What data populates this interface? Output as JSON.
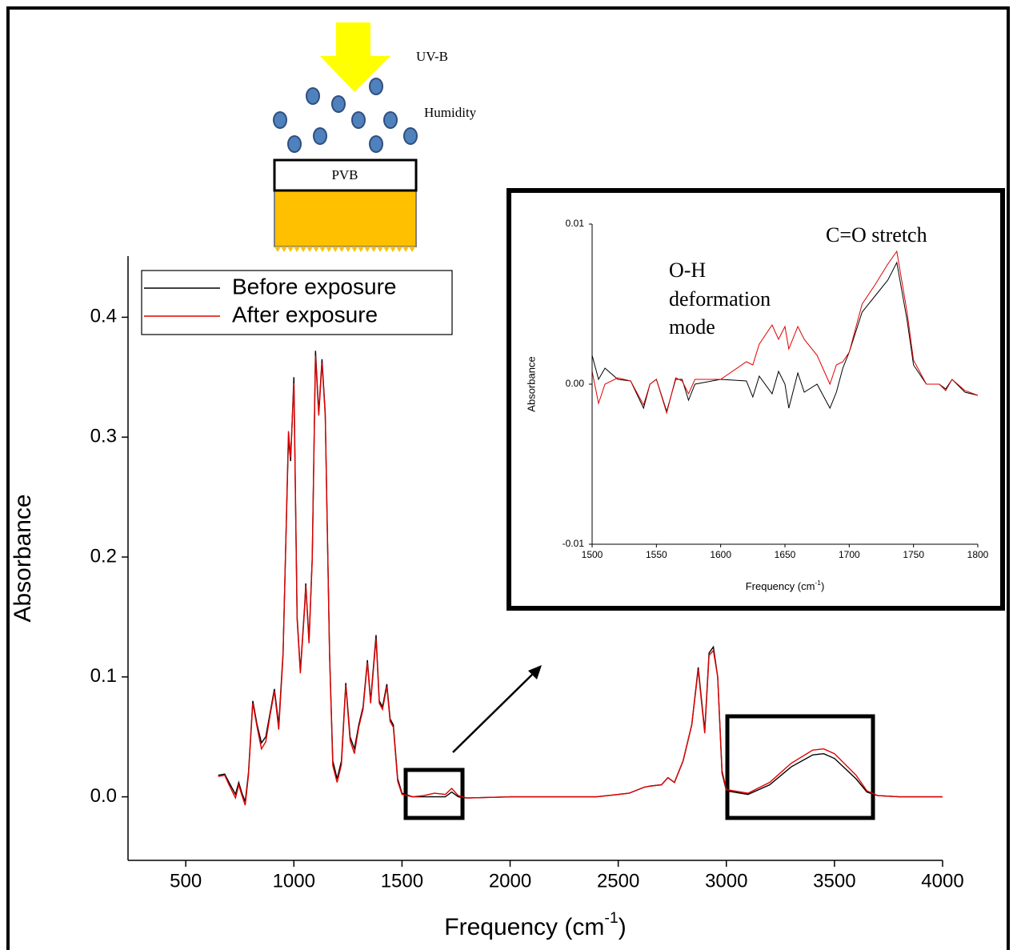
{
  "chart_data": [
    {
      "type": "line",
      "xlabel": "Frequency (cm",
      "xlabel_sup": "-1",
      "xlabel_end": ")",
      "ylabel": "Absorbance",
      "annotations": [
        "UV-B",
        "Humidity",
        "PVB"
      ],
      "xlim": [
        233,
        4000
      ],
      "ylim": [
        -0.053,
        0.451
      ],
      "xticks": [
        500,
        1000,
        1500,
        2000,
        2500,
        3000,
        3500,
        4000
      ],
      "yticks": [
        {
          "value": 0,
          "label": "0.0"
        },
        0.1,
        0.2,
        0.3,
        0.4
      ],
      "legend": "upper left",
      "x": [
        650,
        680,
        700,
        730,
        745,
        760,
        775,
        790,
        810,
        830,
        850,
        870,
        890,
        910,
        930,
        950,
        975,
        985,
        1000,
        1015,
        1030,
        1050,
        1055,
        1070,
        1085,
        1100,
        1115,
        1130,
        1145,
        1165,
        1180,
        1200,
        1220,
        1240,
        1260,
        1280,
        1300,
        1320,
        1340,
        1355,
        1380,
        1395,
        1410,
        1430,
        1445,
        1460,
        1480,
        1500,
        1550,
        1600,
        1650,
        1700,
        1730,
        1760,
        1800,
        2000,
        2200,
        2400,
        2550,
        2620,
        2650,
        2700,
        2730,
        2760,
        2800,
        2840,
        2870,
        2880,
        2900,
        2920,
        2940,
        2960,
        2980,
        3000,
        3100,
        3200,
        3300,
        3400,
        3450,
        3500,
        3600,
        3650,
        3700,
        3800,
        4000
      ],
      "series": [
        {
          "name": "Before exposure",
          "color": "#000000",
          "values": [
            0.018,
            0.019,
            0.012,
            0.002,
            0.012,
            0.003,
            -0.004,
            0.02,
            0.08,
            0.06,
            0.045,
            0.05,
            0.07,
            0.09,
            0.06,
            0.12,
            0.3,
            0.28,
            0.35,
            0.15,
            0.105,
            0.16,
            0.178,
            0.13,
            0.2,
            0.372,
            0.32,
            0.365,
            0.32,
            0.12,
            0.03,
            0.015,
            0.03,
            0.095,
            0.05,
            0.04,
            0.06,
            0.075,
            0.114,
            0.08,
            0.135,
            0.08,
            0.075,
            0.094,
            0.065,
            0.06,
            0.015,
            0.003,
            0,
            0,
            0,
            0,
            0.004,
            0,
            -0.001,
            0,
            0,
            0,
            0.003,
            0.008,
            0.009,
            0.01,
            0.016,
            0.012,
            0.03,
            0.06,
            0.108,
            0.09,
            0.055,
            0.12,
            0.125,
            0.1,
            0.02,
            0.005,
            0.002,
            0.01,
            0.025,
            0.035,
            0.036,
            0.032,
            0.015,
            0.004,
            0.001,
            0,
            0
          ]
        },
        {
          "name": "After exposure",
          "color": "#e00000",
          "values": [
            0.017,
            0.018,
            0.01,
            -0.001,
            0.01,
            0.001,
            -0.007,
            0.018,
            0.078,
            0.058,
            0.04,
            0.046,
            0.068,
            0.088,
            0.056,
            0.118,
            0.305,
            0.283,
            0.345,
            0.148,
            0.103,
            0.158,
            0.176,
            0.128,
            0.198,
            0.368,
            0.318,
            0.362,
            0.318,
            0.118,
            0.026,
            0.012,
            0.027,
            0.093,
            0.047,
            0.036,
            0.058,
            0.073,
            0.112,
            0.078,
            0.132,
            0.078,
            0.073,
            0.092,
            0.063,
            0.058,
            0.013,
            0.002,
            0,
            0.001,
            0.003,
            0.002,
            0.007,
            0.001,
            -0.001,
            0,
            0,
            0,
            0.003,
            0.008,
            0.009,
            0.01,
            0.016,
            0.012,
            0.03,
            0.06,
            0.106,
            0.088,
            0.053,
            0.118,
            0.122,
            0.1,
            0.022,
            0.006,
            0.003,
            0.012,
            0.028,
            0.039,
            0.04,
            0.036,
            0.018,
            0.005,
            0.001,
            0,
            0
          ]
        }
      ]
    },
    {
      "type": "line",
      "xlabel": "Frequency (cm",
      "xlabel_sup": "-1",
      "xlabel_end": ")",
      "ylabel": "Absorbance",
      "annotations": [
        "O-H",
        "deformation",
        "mode",
        "C=O stretch"
      ],
      "xlim": [
        1500,
        1800
      ],
      "ylim": [
        -0.01,
        0.01
      ],
      "xticks": [
        1500,
        1550,
        1600,
        1650,
        1700,
        1750,
        1800
      ],
      "yticks": [
        {
          "value": -0.01,
          "label": "-0.01"
        },
        {
          "value": 0,
          "label": "0.00"
        },
        0.01
      ],
      "x": [
        1500,
        1505,
        1510,
        1520,
        1530,
        1540,
        1545,
        1550,
        1558,
        1565,
        1570,
        1575,
        1580,
        1600,
        1620,
        1625,
        1630,
        1640,
        1645,
        1650,
        1653,
        1660,
        1665,
        1675,
        1685,
        1690,
        1695,
        1700,
        1710,
        1720,
        1730,
        1737,
        1745,
        1750,
        1760,
        1770,
        1775,
        1780,
        1790,
        1800
      ],
      "series": [
        {
          "name": "Before exposure",
          "color": "#000000",
          "values": [
            0.0018,
            0.0003,
            0.001,
            0.0003,
            0.0002,
            -0.0015,
            0,
            0.0003,
            -0.0017,
            0.0003,
            0.0003,
            -0.001,
            0,
            0.0003,
            0.0002,
            -0.0008,
            0.0005,
            -0.0006,
            0.0008,
            0,
            -0.0015,
            0.0007,
            -0.0005,
            0,
            -0.0015,
            -0.0005,
            0.001,
            0.002,
            0.0045,
            0.0055,
            0.0065,
            0.0076,
            0.004,
            0.0012,
            0,
            0,
            -0.0003,
            0.0003,
            -0.0005,
            -0.0007
          ]
        },
        {
          "name": "After exposure",
          "color": "#e00000",
          "values": [
            0.0008,
            -0.0012,
            0,
            0.0004,
            0.0002,
            -0.0013,
            0,
            0.0003,
            -0.0018,
            0.0004,
            0.0002,
            -0.0006,
            0.0003,
            0.0003,
            0.0014,
            0.0012,
            0.0025,
            0.0037,
            0.0028,
            0.0036,
            0.0022,
            0.0036,
            0.0028,
            0.0018,
            0,
            0.0012,
            0.0014,
            0.002,
            0.005,
            0.0062,
            0.0075,
            0.0083,
            0.0045,
            0.0015,
            0,
            0,
            -0.0004,
            0.0003,
            -0.0004,
            -0.0007
          ]
        }
      ]
    }
  ]
}
